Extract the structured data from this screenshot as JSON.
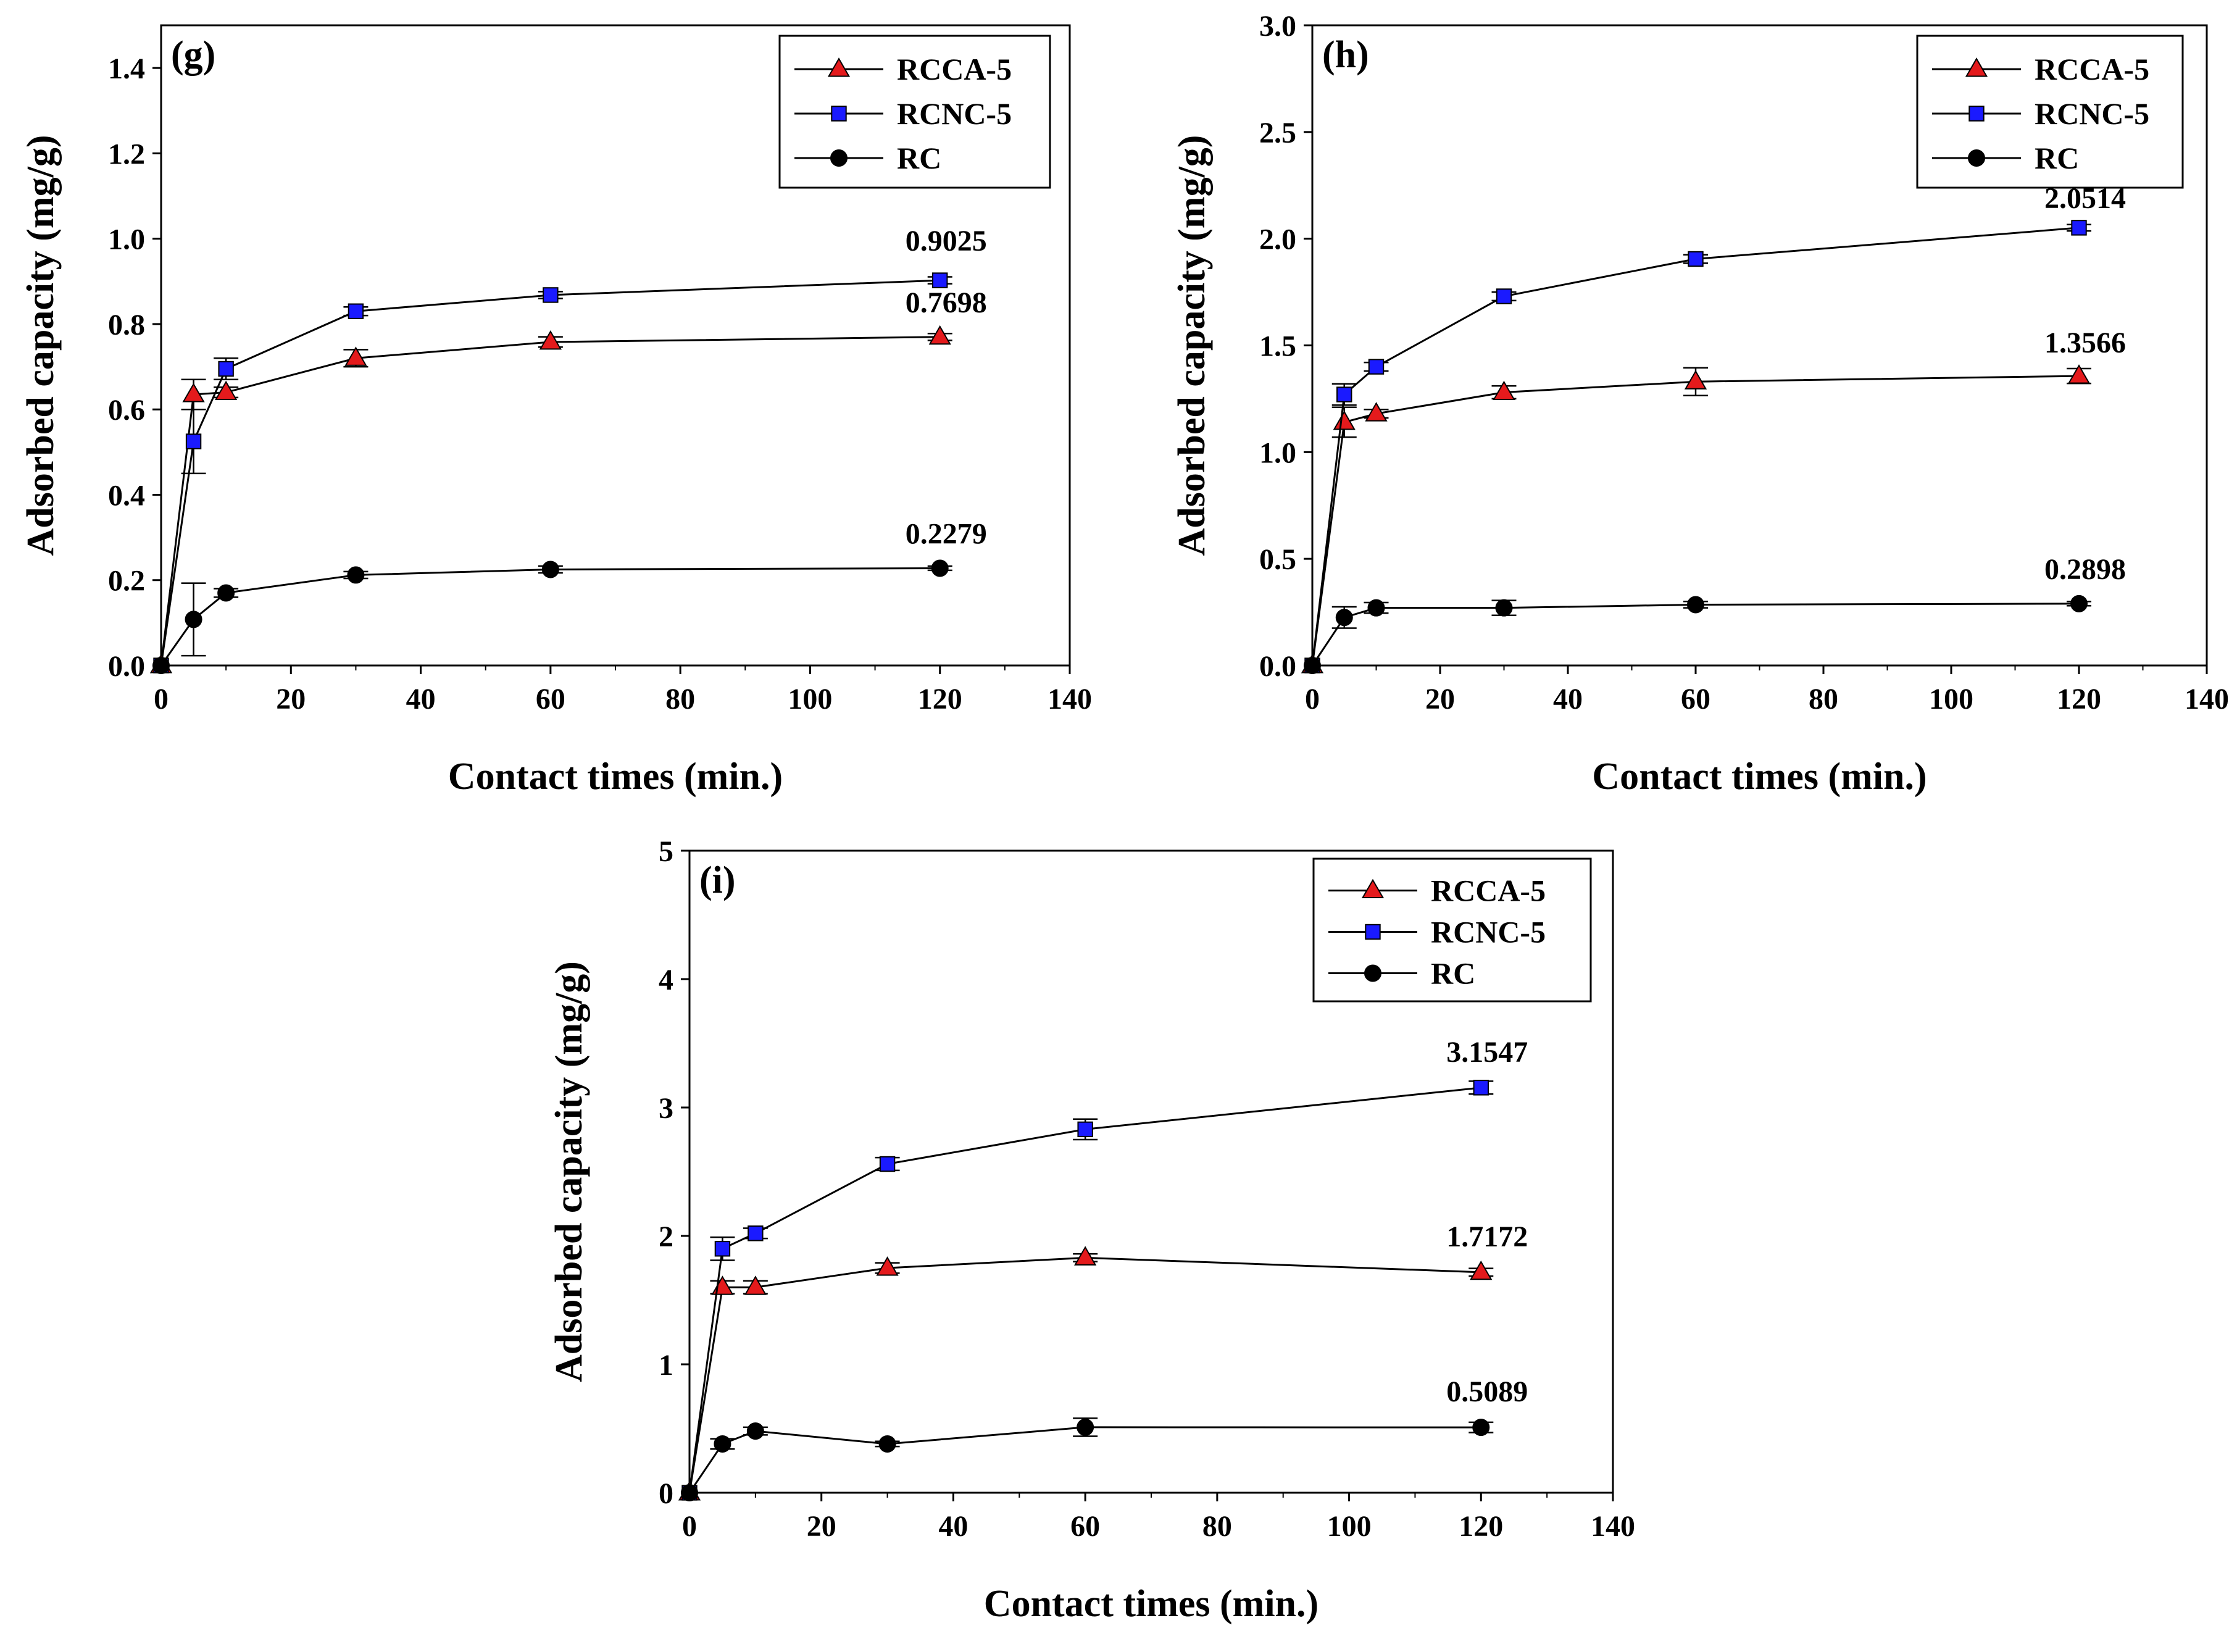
{
  "chart_data": [
    {
      "type": "line",
      "panel_label": "(g)",
      "xlabel": "Contact times (min.)",
      "ylabel": "Adsorbed capacity (mg/g)",
      "xlim": [
        0,
        140
      ],
      "ylim": [
        0,
        1.5
      ],
      "xticks": [
        0,
        20,
        40,
        60,
        80,
        100,
        120,
        140
      ],
      "xtick_labels": [
        "0",
        "20",
        "40",
        "60",
        "80",
        "100",
        "120",
        "140"
      ],
      "yticks": [
        0,
        0.2,
        0.4,
        0.6,
        0.8,
        1.0,
        1.2,
        1.4
      ],
      "ytick_labels": [
        "0.0",
        "0.2",
        "0.4",
        "0.6",
        "0.8",
        "1.0",
        "1.2",
        "1.4"
      ],
      "legend_position": "top-right",
      "x": [
        0,
        5,
        10,
        30,
        60,
        120
      ],
      "series": [
        {
          "name": "RCCA-5",
          "marker": "triangle",
          "color": "#e41a1c",
          "values": [
            0,
            0.635,
            0.64,
            0.72,
            0.758,
            0.7698
          ],
          "errors": [
            0,
            0.035,
            0.012,
            0.02,
            0.012,
            0.008
          ]
        },
        {
          "name": "RCNC-5",
          "marker": "square",
          "color": "#1a1aff",
          "values": [
            0,
            0.525,
            0.695,
            0.83,
            0.868,
            0.9025
          ],
          "errors": [
            0,
            0.075,
            0.025,
            0.01,
            0.008,
            0.008
          ]
        },
        {
          "name": "RC",
          "marker": "circle",
          "color": "#000000",
          "values": [
            0,
            0.108,
            0.17,
            0.212,
            0.225,
            0.2279
          ],
          "errors": [
            0,
            0.085,
            0.01,
            0.008,
            0.008,
            0.005
          ]
        }
      ],
      "annotations": [
        {
          "text": "0.9025",
          "x": 120,
          "y": 0.9025
        },
        {
          "text": "0.7698",
          "x": 120,
          "y": 0.7698
        },
        {
          "text": "0.2279",
          "x": 120,
          "y": 0.2279
        }
      ]
    },
    {
      "type": "line",
      "panel_label": "(h)",
      "xlabel": "Contact times (min.)",
      "ylabel": "Adsorbed capacity (mg/g)",
      "xlim": [
        0,
        140
      ],
      "ylim": [
        0,
        3.0
      ],
      "xticks": [
        0,
        20,
        40,
        60,
        80,
        100,
        120,
        140
      ],
      "xtick_labels": [
        "0",
        "20",
        "40",
        "60",
        "80",
        "100",
        "120",
        "140"
      ],
      "yticks": [
        0,
        0.5,
        1.0,
        1.5,
        2.0,
        2.5,
        3.0
      ],
      "ytick_labels": [
        "0.0",
        "0.5",
        "1.0",
        "1.5",
        "2.0",
        "2.5",
        "3.0"
      ],
      "legend_position": "top-right",
      "x": [
        0,
        5,
        10,
        30,
        60,
        120
      ],
      "series": [
        {
          "name": "RCCA-5",
          "marker": "triangle",
          "color": "#e41a1c",
          "values": [
            0,
            1.14,
            1.18,
            1.28,
            1.33,
            1.3566
          ],
          "errors": [
            0,
            0.07,
            0.02,
            0.03,
            0.065,
            0.035
          ]
        },
        {
          "name": "RCNC-5",
          "marker": "square",
          "color": "#1a1aff",
          "values": [
            0,
            1.27,
            1.4,
            1.73,
            1.905,
            2.0514
          ],
          "errors": [
            0,
            0.05,
            0.02,
            0.02,
            0.02,
            0.015
          ]
        },
        {
          "name": "RC",
          "marker": "circle",
          "color": "#000000",
          "values": [
            0,
            0.225,
            0.27,
            0.27,
            0.285,
            0.2898
          ],
          "errors": [
            0,
            0.05,
            0.025,
            0.035,
            0.015,
            0.01
          ]
        }
      ],
      "annotations": [
        {
          "text": "2.0514",
          "x": 120,
          "y": 2.0514
        },
        {
          "text": "1.3566",
          "x": 120,
          "y": 1.3566
        },
        {
          "text": "0.2898",
          "x": 120,
          "y": 0.2898
        }
      ]
    },
    {
      "type": "line",
      "panel_label": "(i)",
      "xlabel": "Contact times (min.)",
      "ylabel": "Adsorbed capacity (mg/g)",
      "xlim": [
        0,
        140
      ],
      "ylim": [
        0,
        5
      ],
      "xticks": [
        0,
        20,
        40,
        60,
        80,
        100,
        120,
        140
      ],
      "xtick_labels": [
        "0",
        "20",
        "40",
        "60",
        "80",
        "100",
        "120",
        "140"
      ],
      "yticks": [
        0,
        1,
        2,
        3,
        4,
        5
      ],
      "ytick_labels": [
        "0",
        "1",
        "2",
        "3",
        "4",
        "5"
      ],
      "legend_position": "top-right",
      "x": [
        0,
        5,
        10,
        30,
        60,
        120
      ],
      "series": [
        {
          "name": "RCCA-5",
          "marker": "triangle",
          "color": "#e41a1c",
          "values": [
            0,
            1.6,
            1.6,
            1.75,
            1.83,
            1.7172
          ],
          "errors": [
            0,
            0.05,
            0.05,
            0.04,
            0.03,
            0.03
          ]
        },
        {
          "name": "RCNC-5",
          "marker": "square",
          "color": "#1a1aff",
          "values": [
            0,
            1.9,
            2.02,
            2.56,
            2.83,
            3.1547
          ],
          "errors": [
            0,
            0.09,
            0.04,
            0.05,
            0.08,
            0.05
          ]
        },
        {
          "name": "RC",
          "marker": "circle",
          "color": "#000000",
          "values": [
            0,
            0.38,
            0.48,
            0.38,
            0.51,
            0.5089
          ],
          "errors": [
            0,
            0.04,
            0.03,
            0.02,
            0.07,
            0.04
          ]
        }
      ],
      "annotations": [
        {
          "text": "3.1547",
          "x": 120,
          "y": 3.1547
        },
        {
          "text": "1.7172",
          "x": 120,
          "y": 1.7172
        },
        {
          "text": "0.5089",
          "x": 120,
          "y": 0.5089
        }
      ]
    }
  ]
}
